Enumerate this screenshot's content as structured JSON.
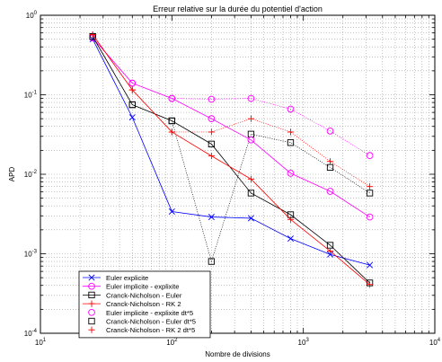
{
  "chart_data": {
    "type": "line",
    "title": "Erreur relative sur la durée du potentiel d'action",
    "xlabel": "Nombre de divisions",
    "ylabel": "APD",
    "xscale": "log",
    "yscale": "log",
    "xlim": [
      10,
      10000
    ],
    "ylim": [
      0.0001,
      1
    ],
    "grid": true,
    "legend_position": "bottom-left",
    "x_ticks": [
      {
        "base": "10",
        "exp": "1",
        "value": 10
      },
      {
        "base": "10",
        "exp": "2",
        "value": 100
      },
      {
        "base": "10",
        "exp": "3",
        "value": 1000
      },
      {
        "base": "10",
        "exp": "4",
        "value": 10000
      }
    ],
    "y_ticks": [
      {
        "base": "10",
        "exp": "-4",
        "value": 0.0001
      },
      {
        "base": "10",
        "exp": "-3",
        "value": 0.001
      },
      {
        "base": "10",
        "exp": "-2",
        "value": 0.01
      },
      {
        "base": "10",
        "exp": "-1",
        "value": 0.1
      },
      {
        "base": "10",
        "exp": "0",
        "value": 1
      }
    ],
    "x": [
      25,
      50,
      100,
      200,
      400,
      800,
      1600,
      3200
    ],
    "series": [
      {
        "name": "Euler explicite",
        "color": "#0000ff",
        "marker": "x",
        "line": "solid",
        "values": [
          0.5,
          0.052,
          0.0034,
          0.0029,
          0.0028,
          0.00155,
          0.00098,
          0.00072
        ]
      },
      {
        "name": "Euler implicite - explixite",
        "color": "#ff00ff",
        "marker": "o",
        "line": "solid",
        "values": [
          0.52,
          0.14,
          0.09,
          0.05,
          0.027,
          0.0103,
          0.0061,
          0.0029
        ]
      },
      {
        "name": "Cranck-Nicholson - Euler",
        "color": "#000000",
        "marker": "s",
        "line": "solid",
        "values": [
          0.54,
          0.075,
          0.047,
          0.024,
          0.0058,
          0.0031,
          0.00128,
          0.00043
        ]
      },
      {
        "name": "Cranck-Nicholson - RK 2",
        "color": "#ff0000",
        "marker": "+",
        "line": "solid",
        "values": [
          0.57,
          0.115,
          0.034,
          0.017,
          0.0087,
          0.0027,
          0.00108,
          0.00041
        ]
      },
      {
        "name": "Euler implicite - explixite dt*5",
        "color": "#ff00ff",
        "marker": "o",
        "line": "dotted",
        "values": [
          0.52,
          0.14,
          0.09,
          0.088,
          0.09,
          0.066,
          0.035,
          0.0172
        ]
      },
      {
        "name": "Cranck-Nicholson - Euler dt*5",
        "color": "#000000",
        "marker": "s",
        "line": "dotted",
        "values": [
          0.54,
          0.075,
          0.047,
          0.0008,
          0.032,
          0.025,
          0.0122,
          0.0058
        ]
      },
      {
        "name": "Cranck-Nicholson - RK 2 dt*5",
        "color": "#ff0000",
        "marker": "+",
        "line": "dotted",
        "values": [
          0.57,
          0.115,
          0.034,
          0.034,
          0.05,
          0.034,
          0.0145,
          0.007
        ]
      }
    ]
  }
}
